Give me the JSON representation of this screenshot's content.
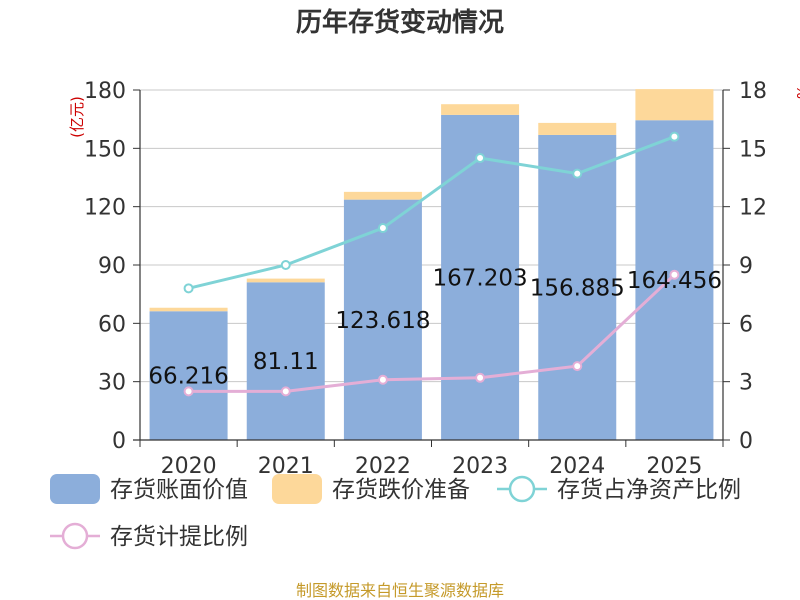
{
  "chart_data": {
    "type": "bar",
    "title": "历年存货变动情况",
    "y_left_unit": "(亿元)",
    "y_right_unit": "%",
    "categories": [
      "2020",
      "2021",
      "2022",
      "2023",
      "2024",
      "2025"
    ],
    "ylim_left": [
      0,
      180
    ],
    "ylim_right": [
      0,
      18
    ],
    "yticks_left": [
      "0",
      "30",
      "60",
      "90",
      "120",
      "150",
      "180"
    ],
    "yticks_right": [
      "0",
      "3",
      "6",
      "9",
      "12",
      "15",
      "18"
    ],
    "series": [
      {
        "name": "存货账面价值",
        "kind": "bar",
        "stack": "s",
        "axis": "left",
        "color": "#8caedb",
        "values": [
          66.216,
          81.11,
          123.618,
          167.203,
          156.885,
          164.456
        ],
        "labels": [
          "66.216",
          "81.11",
          "123.618",
          "167.203",
          "156.885",
          "164.456"
        ]
      },
      {
        "name": "存货跌价准备",
        "kind": "bar",
        "stack": "s",
        "axis": "left",
        "color": "#fdd89a",
        "values": [
          1.8,
          1.9,
          4.0,
          5.5,
          6.2,
          16.0
        ]
      },
      {
        "name": "存货占净资产比例",
        "kind": "line",
        "axis": "right",
        "color": "#7fd3d6",
        "values": [
          7.8,
          9.0,
          10.9,
          14.5,
          13.7,
          15.6
        ]
      },
      {
        "name": "存货计提比例",
        "kind": "line",
        "axis": "right",
        "color": "#e4aed6",
        "values": [
          2.5,
          2.5,
          3.1,
          3.2,
          3.8,
          8.5
        ]
      }
    ],
    "grid": true,
    "legend_position": "bottom"
  },
  "source_text": "制图数据来自恒生聚源数据库"
}
